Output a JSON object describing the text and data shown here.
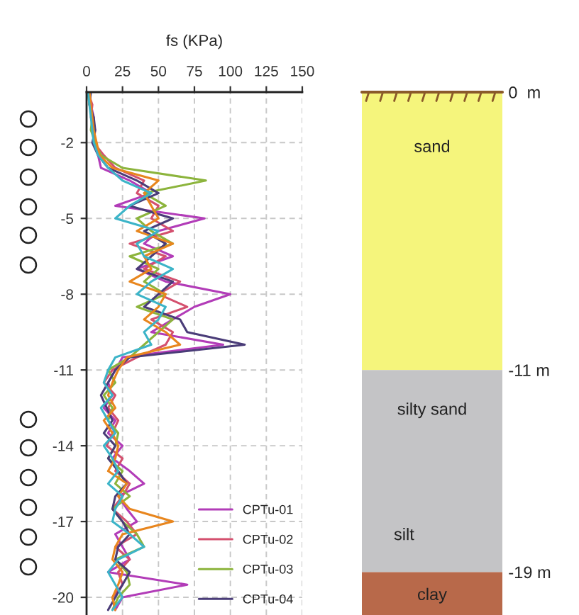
{
  "chart_data": [
    {
      "type": "line",
      "xlabel": "fs (KPa)",
      "xlim": [
        0,
        150
      ],
      "xticks": [
        0,
        25,
        50,
        75,
        100,
        125,
        150
      ],
      "ylim": [
        -20.7,
        0
      ],
      "yticks": [
        -2,
        -5,
        -8,
        -11,
        -14,
        -17,
        -20
      ],
      "grid": true,
      "legend": "bottom right",
      "line_style": "solid",
      "series": [
        {
          "name": "CPTu-01",
          "color": "#b23cb8",
          "x": [
            2,
            3,
            5,
            4,
            6,
            8,
            10,
            30,
            45,
            20,
            82,
            50,
            40,
            60,
            35,
            55,
            100,
            75,
            60,
            45,
            95,
            25,
            20,
            15,
            18,
            12,
            20,
            15,
            25,
            18,
            30,
            40,
            22,
            28,
            35,
            20,
            25,
            30,
            15,
            70,
            25,
            20
          ],
          "values": [
            0,
            -0.5,
            -1,
            -1.5,
            -2,
            -2.5,
            -3,
            -3.5,
            -4,
            -4.5,
            -5,
            -5.5,
            -6,
            -6.5,
            -7,
            -7.5,
            -8,
            -8.5,
            -9,
            -9.5,
            -10,
            -10.5,
            -11,
            -11.5,
            -12,
            -12.5,
            -13,
            -13.5,
            -14,
            -14.5,
            -15,
            -15.5,
            -16,
            -16.5,
            -17,
            -17.5,
            -18,
            -18.5,
            -19,
            -19.5,
            -20,
            -20.5
          ]
        },
        {
          "name": "CPTu-02",
          "color": "#d4506e",
          "x": [
            1,
            4,
            3,
            6,
            5,
            12,
            20,
            40,
            35,
            50,
            45,
            60,
            30,
            55,
            40,
            65,
            50,
            70,
            45,
            60,
            55,
            35,
            18,
            12,
            20,
            15,
            22,
            18,
            14,
            25,
            20,
            30,
            25,
            18,
            28,
            35,
            20,
            30,
            22,
            25,
            18,
            20
          ],
          "values": [
            0,
            -0.5,
            -1,
            -1.5,
            -2,
            -2.5,
            -3,
            -3.5,
            -4,
            -4.5,
            -5,
            -5.5,
            -6,
            -6.5,
            -7,
            -7.5,
            -8,
            -8.5,
            -9,
            -9.5,
            -10,
            -10.5,
            -11,
            -11.5,
            -12,
            -12.5,
            -13,
            -13.5,
            -14,
            -14.5,
            -15,
            -15.5,
            -16,
            -16.5,
            -17,
            -17.5,
            -18,
            -18.5,
            -19,
            -19.5,
            -20,
            -20.5
          ]
        },
        {
          "name": "CPTu-03",
          "color": "#8cb43c",
          "x": [
            1,
            2,
            4,
            3,
            6,
            10,
            25,
            83,
            40,
            55,
            35,
            45,
            60,
            30,
            50,
            40,
            55,
            35,
            60,
            50,
            40,
            30,
            15,
            20,
            12,
            18,
            15,
            22,
            20,
            15,
            25,
            20,
            30,
            18,
            25,
            35,
            40,
            20,
            28,
            30,
            22,
            18
          ],
          "values": [
            0,
            -0.5,
            -1,
            -1.5,
            -2,
            -2.5,
            -3,
            -3.5,
            -4,
            -4.5,
            -5,
            -5.5,
            -6,
            -6.5,
            -7,
            -7.5,
            -8,
            -8.5,
            -9,
            -9.5,
            -10,
            -10.5,
            -11,
            -11.5,
            -12,
            -12.5,
            -13,
            -13.5,
            -14,
            -14.5,
            -15,
            -15.5,
            -16,
            -16.5,
            -17,
            -17.5,
            -18,
            -18.5,
            -19,
            -19.5,
            -20,
            -20.5
          ]
        },
        {
          "name": "CPTu-04",
          "color": "#4a3c78",
          "x": [
            3,
            2,
            5,
            6,
            4,
            8,
            15,
            35,
            50,
            30,
            60,
            40,
            55,
            45,
            35,
            60,
            50,
            40,
            65,
            70,
            110,
            30,
            20,
            15,
            10,
            14,
            18,
            12,
            20,
            15,
            22,
            28,
            20,
            18,
            25,
            30,
            22,
            20,
            30,
            25,
            20,
            15
          ],
          "values": [
            0,
            -0.5,
            -1,
            -1.5,
            -2,
            -2.5,
            -3,
            -3.5,
            -4,
            -4.5,
            -5,
            -5.5,
            -6,
            -6.5,
            -7,
            -7.5,
            -8,
            -8.5,
            -9,
            -9.5,
            -10,
            -10.5,
            -11,
            -11.5,
            -12,
            -12.5,
            -13,
            -13.5,
            -14,
            -14.5,
            -15,
            -15.5,
            -16,
            -16.5,
            -17,
            -17.5,
            -18,
            -18.5,
            -19,
            -19.5,
            -20,
            -20.5
          ]
        },
        {
          "color": "#e8861e",
          "x": [
            2,
            3,
            4,
            5,
            7,
            9,
            18,
            50,
            40,
            45,
            50,
            35,
            60,
            40,
            45,
            30,
            55,
            50,
            40,
            55,
            65,
            28,
            22,
            18,
            15,
            20,
            12,
            18,
            22,
            20,
            15,
            28,
            22,
            30,
            60,
            25,
            20,
            18,
            25,
            22,
            18,
            20
          ],
          "values": [
            0,
            -0.5,
            -1,
            -1.5,
            -2,
            -2.5,
            -3,
            -3.5,
            -4,
            -4.5,
            -5,
            -5.5,
            -6,
            -6.5,
            -7,
            -7.5,
            -8,
            -8.5,
            -9,
            -9.5,
            -10,
            -10.5,
            -11,
            -11.5,
            -12,
            -12.5,
            -13,
            -13.5,
            -14,
            -14.5,
            -15,
            -15.5,
            -16,
            -16.5,
            -17,
            -17.5,
            -18,
            -18.5,
            -19,
            -19.5,
            -20,
            -20.5
          ]
        },
        {
          "color": "#3cb4c8",
          "x": [
            1,
            2,
            3,
            4,
            5,
            8,
            15,
            25,
            45,
            30,
            20,
            50,
            35,
            40,
            60,
            45,
            35,
            55,
            50,
            40,
            45,
            20,
            15,
            12,
            18,
            10,
            15,
            20,
            12,
            18,
            22,
            15,
            25,
            20,
            18,
            30,
            40,
            22,
            15,
            20,
            25,
            18
          ],
          "values": [
            0,
            -0.5,
            -1,
            -1.5,
            -2,
            -2.5,
            -3,
            -3.5,
            -4,
            -4.5,
            -5,
            -5.5,
            -6,
            -6.5,
            -7,
            -7.5,
            -8,
            -8.5,
            -9,
            -9.5,
            -10,
            -10.5,
            -11,
            -11.5,
            -12,
            -12.5,
            -13,
            -13.5,
            -14,
            -14.5,
            -15,
            -15.5,
            -16,
            -16.5,
            -17,
            -17.5,
            -18,
            -18.5,
            -19,
            -19.5,
            -20,
            -20.5
          ]
        }
      ]
    },
    {
      "type": "bar",
      "stacked": true,
      "categories": [
        null
      ],
      "ylim": [
        -20.7,
        0
      ],
      "yticks": [
        {
          "value": 0,
          "label": "0  m"
        },
        {
          "value": -11,
          "label": "-11 m"
        },
        {
          "value": -19,
          "label": "-19 m"
        }
      ],
      "tick_labels": "y",
      "series": [
        {
          "name": "sand",
          "color": "#f5f57c",
          "values": [
            -11
          ]
        },
        {
          "name": "silty sand",
          "color": "#c4c4c6",
          "values": [
            -8
          ]
        },
        {
          "name": "clay",
          "color": "#b8694a",
          "values": [
            -1.7
          ]
        }
      ],
      "annotations": [
        "silt"
      ]
    }
  ]
}
